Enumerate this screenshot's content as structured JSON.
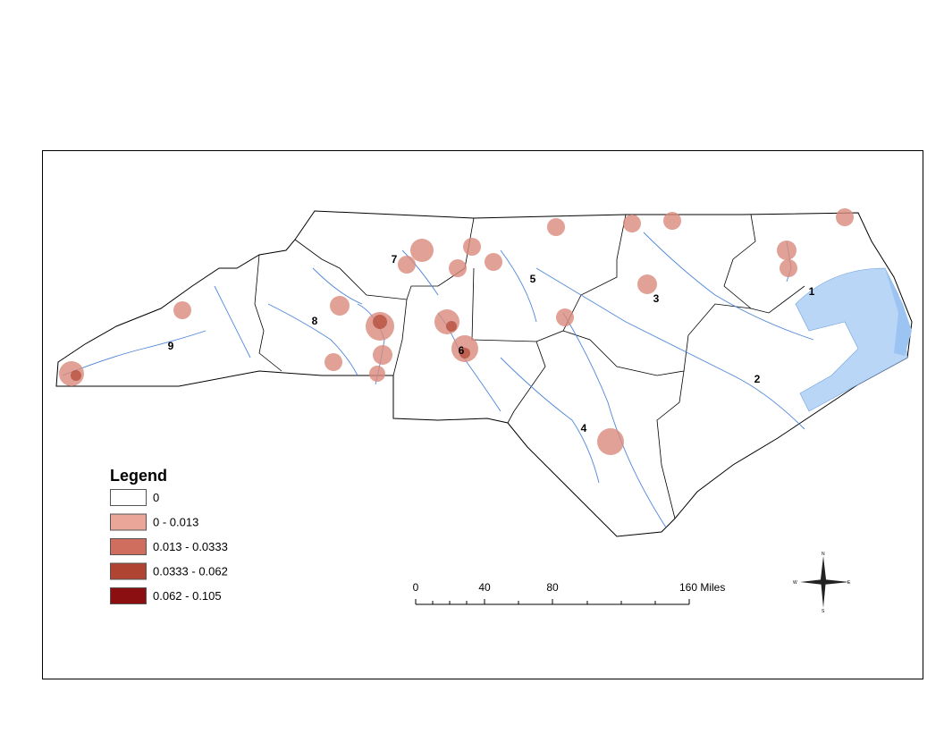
{
  "legend": {
    "title": "Legend",
    "items": [
      {
        "label": "0",
        "color": "#ffffff"
      },
      {
        "label": "0 - 0.013",
        "color": "#e9a699"
      },
      {
        "label": "0.013 - 0.0333",
        "color": "#cf6e5f"
      },
      {
        "label": "0.0333 - 0.062",
        "color": "#b04432"
      },
      {
        "label": "0.062 - 0.105",
        "color": "#8b0e10"
      }
    ]
  },
  "regions": [
    "1",
    "2",
    "3",
    "4",
    "5",
    "6",
    "7",
    "8",
    "9"
  ],
  "scale_bar": {
    "labels": [
      "0",
      "40",
      "80",
      "160 Miles"
    ]
  },
  "compass": {
    "n": "N",
    "e": "E",
    "s": "S",
    "w": "W"
  }
}
